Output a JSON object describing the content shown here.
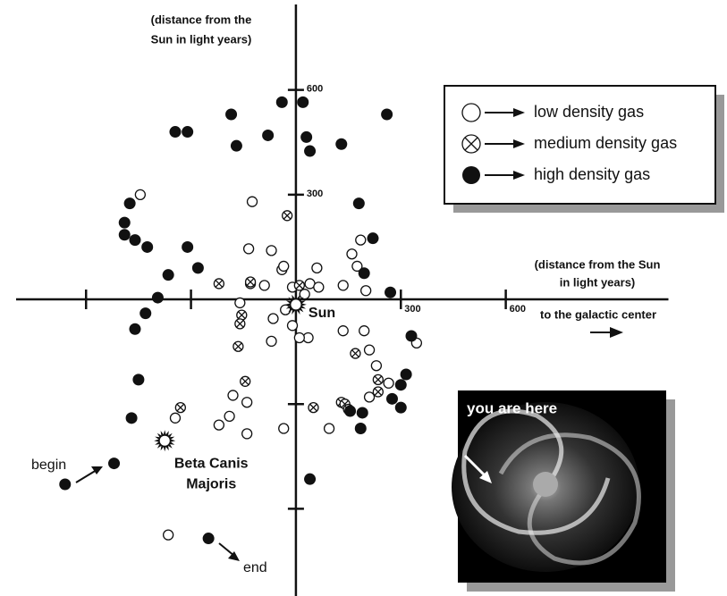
{
  "chart_data": {
    "type": "scatter",
    "y_label": [
      "(distance from the",
      "Sun in light years)"
    ],
    "x_label": [
      "(distance from the Sun",
      "in light years)"
    ],
    "direction_label": "to the galactic center",
    "xlim": [
      -800,
      1065
    ],
    "ylim": [
      -850,
      845
    ],
    "xticks": [
      300,
      600
    ],
    "yticks": [
      300,
      600
    ],
    "xticks_unlabeled": [
      -600,
      -300
    ],
    "yticks_unlabeled": [
      -600,
      -300
    ],
    "grid": false,
    "series": [
      {
        "name": "low density gas",
        "marker": "open",
        "color": "#111111",
        "x": [
          -445,
          -125,
          -135,
          -70,
          -40,
          -35,
          -90,
          -130,
          -160,
          60,
          40,
          65,
          135,
          160,
          185,
          175,
          200,
          -10,
          25,
          -30,
          -65,
          -10,
          35,
          10,
          -70,
          135,
          195,
          345,
          210,
          230,
          210,
          265,
          -180,
          -140,
          -190,
          -220,
          -345,
          -140,
          -35,
          95,
          -365
        ],
        "y": [
          300,
          280,
          145,
          140,
          85,
          95,
          40,
          45,
          -10,
          90,
          45,
          35,
          40,
          130,
          170,
          95,
          25,
          35,
          15,
          -30,
          -55,
          -75,
          -110,
          -110,
          -120,
          -90,
          -90,
          -125,
          -145,
          -190,
          -280,
          -240,
          -275,
          -295,
          -335,
          -360,
          -340,
          -385,
          -370,
          -370,
          -675
        ]
      },
      {
        "name": "medium density gas",
        "marker": "cross",
        "color": "#111111",
        "x": [
          -25,
          -220,
          -130,
          10,
          -155,
          -160,
          -165,
          170,
          -145,
          235,
          235,
          130,
          140,
          150,
          50,
          -330
        ],
        "y": [
          240,
          45,
          50,
          40,
          -45,
          -70,
          -135,
          -155,
          -235,
          -230,
          -265,
          -295,
          -300,
          -315,
          -310,
          -310
        ]
      },
      {
        "name": "high density gas",
        "marker": "filled",
        "color": "#111111",
        "x": [
          -185,
          -40,
          20,
          260,
          -345,
          -310,
          -170,
          -80,
          30,
          40,
          130,
          -475,
          -490,
          -490,
          -460,
          -425,
          -310,
          180,
          220,
          -365,
          -280,
          195,
          270,
          -395,
          -430,
          -460,
          330,
          -450,
          315,
          300,
          275,
          300,
          -470,
          155,
          190,
          185,
          -520,
          -660,
          40,
          -250
        ],
        "y": [
          530,
          565,
          565,
          530,
          480,
          480,
          440,
          470,
          465,
          425,
          445,
          275,
          220,
          185,
          170,
          150,
          150,
          275,
          175,
          70,
          90,
          75,
          20,
          5,
          -40,
          -85,
          -105,
          -230,
          -215,
          -245,
          -285,
          -310,
          -340,
          -320,
          -325,
          -370,
          -470,
          -530,
          -515,
          -685
        ]
      }
    ],
    "stars": [
      {
        "label": "Sun",
        "x": 0,
        "y": -15
      },
      {
        "label": [
          "Beta Canis",
          "Majoris"
        ],
        "x": -375,
        "y": -405
      }
    ],
    "path_labels": {
      "start": "begin",
      "finish": "end"
    },
    "inset_label": "you are here"
  }
}
